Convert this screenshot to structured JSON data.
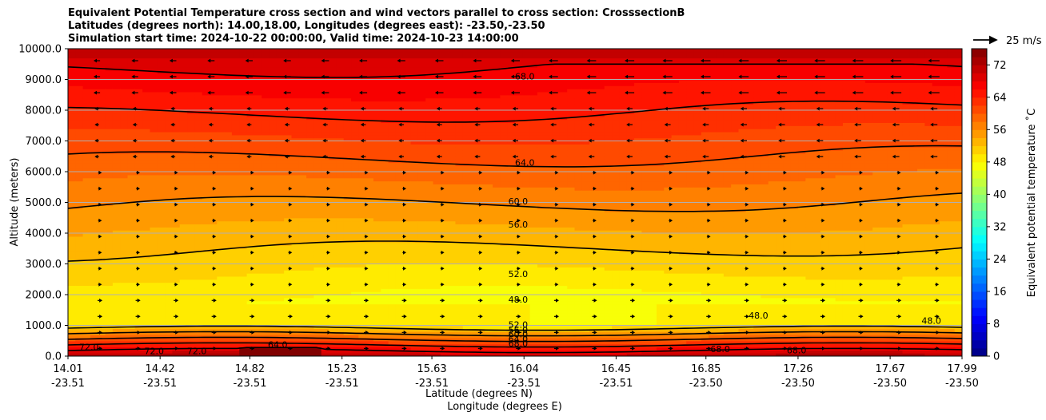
{
  "chart_data": {
    "type": "contour",
    "title_lines": [
      "Equivalent Potential Temperature cross section and wind vectors parallel to cross section: CrosssectionB",
      "Latitudes (degrees north): 14.00,18.00, Longitudes (degrees east): -23.50,-23.50",
      "Simulation start time: 2024-10-22 00:00:00, Valid time: 2024-10-23 14:00:00"
    ],
    "xlabel": "Latitude (degrees N)",
    "xlabel2": "Longitude (degrees E)",
    "ylabel": "Altitude (meters)",
    "ylim": [
      0,
      10000
    ],
    "xlim": [
      14.01,
      17.99
    ],
    "x_ticks": [
      {
        "lat": "14.01",
        "lon": "-23.51"
      },
      {
        "lat": "14.42",
        "lon": "-23.51"
      },
      {
        "lat": "14.82",
        "lon": "-23.51"
      },
      {
        "lat": "15.23",
        "lon": "-23.51"
      },
      {
        "lat": "15.63",
        "lon": "-23.51"
      },
      {
        "lat": "16.04",
        "lon": "-23.51"
      },
      {
        "lat": "16.45",
        "lon": "-23.51"
      },
      {
        "lat": "16.85",
        "lon": "-23.50"
      },
      {
        "lat": "17.26",
        "lon": "-23.50"
      },
      {
        "lat": "17.67",
        "lon": "-23.50"
      },
      {
        "lat": "17.99",
        "lon": "-23.50"
      }
    ],
    "y_ticks": [
      "0.0",
      "1000.0",
      "2000.0",
      "3000.0",
      "4000.0",
      "5000.0",
      "6000.0",
      "7000.0",
      "8000.0",
      "9000.0",
      "10000.0"
    ],
    "grid": true,
    "colorbar": {
      "label": "Equivalent potential temperature ˚C",
      "min": 0,
      "max": 76,
      "step": 2,
      "ticks": [
        "0",
        "8",
        "16",
        "24",
        "32",
        "40",
        "48",
        "56",
        "64",
        "72"
      ],
      "colormap": "jet"
    },
    "quiver_key": {
      "label": "25 m/s",
      "speed": 25
    },
    "contour_labels": [
      {
        "text": "68.0",
        "x": 16.0,
        "y": 9100
      },
      {
        "text": "64.0",
        "x": 16.0,
        "y": 6300
      },
      {
        "text": "60.0",
        "x": 15.97,
        "y": 5040
      },
      {
        "text": "56.0",
        "x": 15.97,
        "y": 4280
      },
      {
        "text": "52.0",
        "x": 15.97,
        "y": 2680
      },
      {
        "text": "48.0",
        "x": 15.97,
        "y": 1850
      },
      {
        "text": "52.0",
        "x": 15.97,
        "y": 1030
      },
      {
        "text": "56.0",
        "x": 15.97,
        "y": 860
      },
      {
        "text": "60.0",
        "x": 15.97,
        "y": 710
      },
      {
        "text": "64.0",
        "x": 15.97,
        "y": 560
      },
      {
        "text": "68.0",
        "x": 15.97,
        "y": 420
      },
      {
        "text": "64.0",
        "x": 14.9,
        "y": 380
      },
      {
        "text": "72.0",
        "x": 14.06,
        "y": 300
      },
      {
        "text": "72.0",
        "x": 14.35,
        "y": 170
      },
      {
        "text": "72.0",
        "x": 14.54,
        "y": 170
      },
      {
        "text": "48.0",
        "x": 17.04,
        "y": 1320
      },
      {
        "text": "48.0",
        "x": 17.81,
        "y": 1150
      },
      {
        "text": "68.0",
        "x": 16.87,
        "y": 230
      },
      {
        "text": "68.0",
        "x": 17.21,
        "y": 190
      }
    ]
  }
}
